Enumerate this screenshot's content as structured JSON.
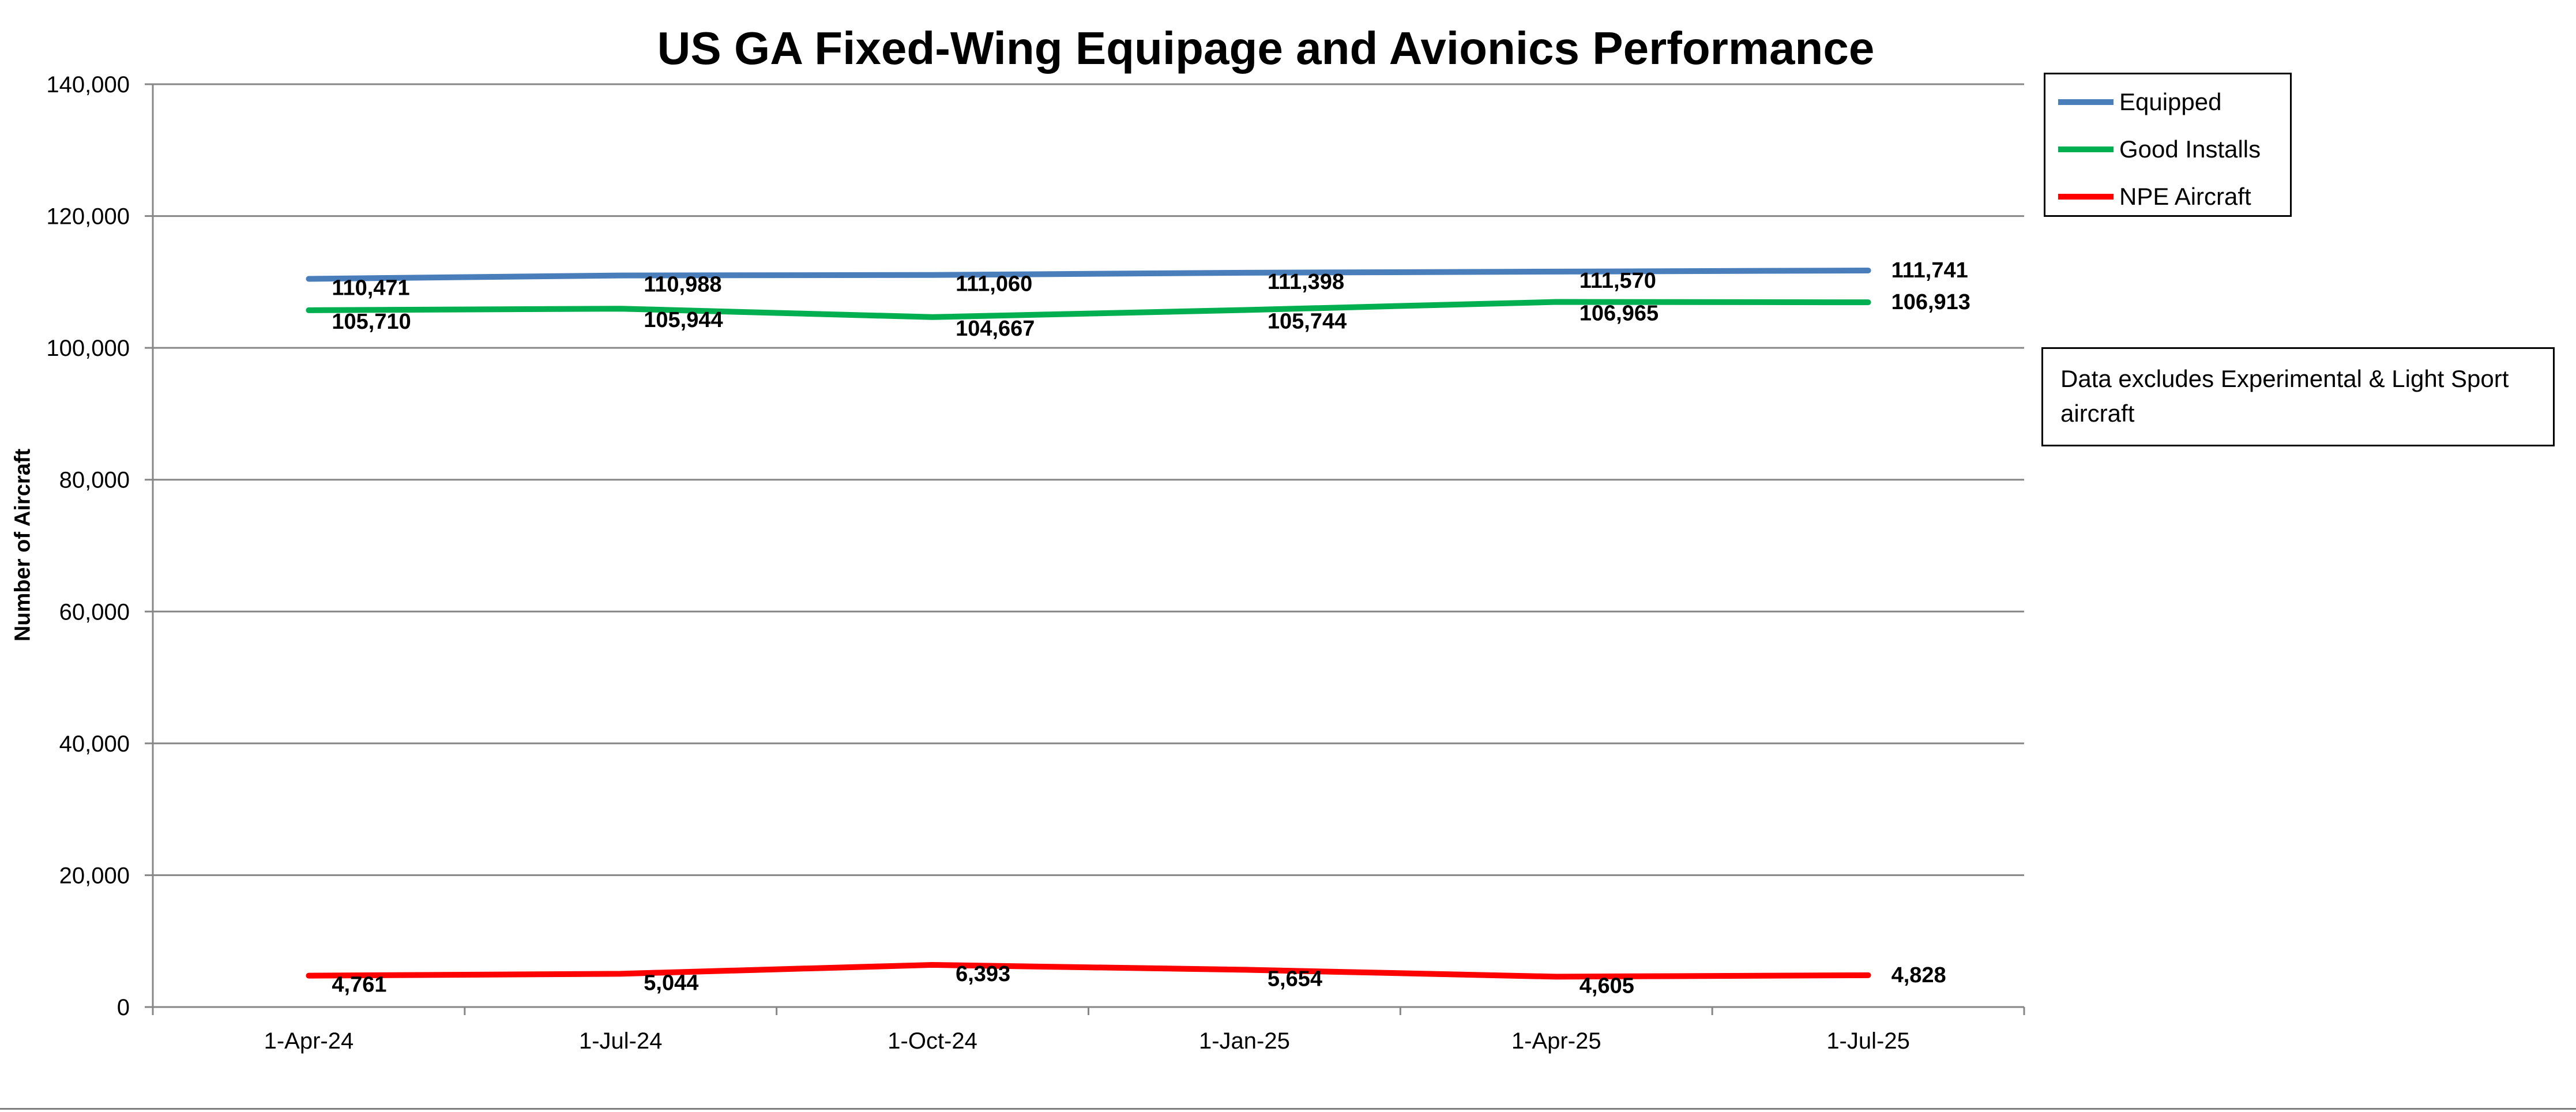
{
  "chart_data": {
    "type": "line",
    "title": "US GA Fixed-Wing Equipage and Avionics Performance",
    "xlabel": "",
    "ylabel": "Number of Aircraft",
    "categories": [
      "1-Apr-24",
      "1-Jul-24",
      "1-Oct-24",
      "1-Jan-25",
      "1-Apr-25",
      "1-Jul-25"
    ],
    "ylim": [
      0,
      140000
    ],
    "yticks": [
      0,
      20000,
      40000,
      60000,
      80000,
      100000,
      120000,
      140000
    ],
    "ytick_labels": [
      "0",
      "20,000",
      "40,000",
      "60,000",
      "80,000",
      "100,000",
      "120,000",
      "140,000"
    ],
    "grid": true,
    "legend_position": "top-right",
    "series": [
      {
        "name": "Equipped",
        "color": "#4a7ebb",
        "values": [
          110471,
          110988,
          111060,
          111398,
          111570,
          111741
        ],
        "labels": [
          "110,471",
          "110,988",
          "111,060",
          "111,398",
          "111,570",
          "111,741"
        ]
      },
      {
        "name": "Good Installs",
        "color": "#00b050",
        "values": [
          105710,
          105944,
          104667,
          105744,
          106965,
          106913
        ],
        "labels": [
          "105,710",
          "105,944",
          "104,667",
          "105,744",
          "106,965",
          "106,913"
        ]
      },
      {
        "name": "NPE Aircraft",
        "color": "#ff0000",
        "values": [
          4761,
          5044,
          6393,
          5654,
          4605,
          4828
        ],
        "labels": [
          "4,761",
          "5,044",
          "6,393",
          "5,654",
          "4,605",
          "4,828"
        ]
      }
    ],
    "annotation": "Data excludes Experimental & Light Sport aircraft"
  }
}
